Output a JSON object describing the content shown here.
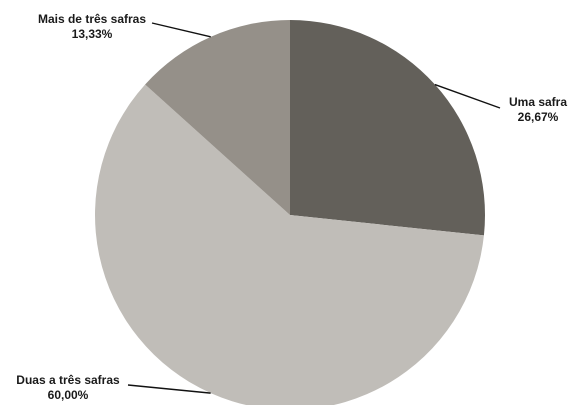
{
  "chart_data": {
    "type": "pie",
    "title": "",
    "slices": [
      {
        "label": "Uma safra",
        "value": 26.67,
        "value_label": "26,67%",
        "color": "#63605a"
      },
      {
        "label": "Duas a três safras",
        "value": 60.0,
        "value_label": "60,00%",
        "color": "#c0bdb8"
      },
      {
        "label": "Mais de três safras",
        "value": 13.33,
        "value_label": "13,33%",
        "color": "#959089"
      }
    ],
    "start_angle": "12 o'clock",
    "direction": "clockwise",
    "legend": "none"
  }
}
